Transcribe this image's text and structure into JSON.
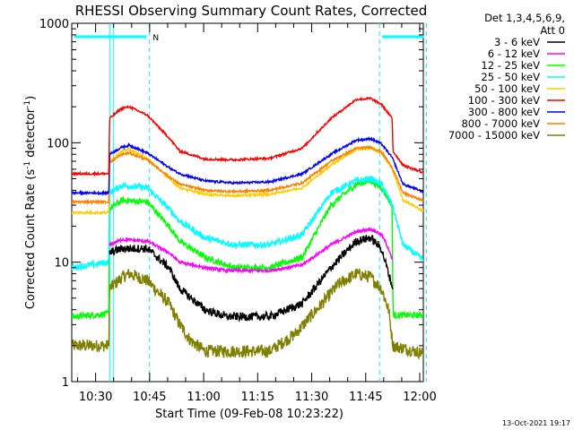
{
  "chart_data": {
    "type": "line",
    "title": "RHESSI Observing Summary Count Rates, Corrected",
    "xlabel": "Start Time (09-Feb-08 10:23:22)",
    "ylabel": "Corrected Count Rate (s-1 detector-1)",
    "ylabel_parts": {
      "base": "Corrected Count Rate (s",
      "sup1": "-1",
      "mid": " detector",
      "sup2": "-1",
      "end": ")"
    },
    "y_scale": "log",
    "ylim": [
      1,
      1000
    ],
    "xlim": [
      "10:23:22",
      "12:01:00"
    ],
    "y_tick_labels": [
      "1",
      "10",
      "100",
      "1000"
    ],
    "x_tick_labels": [
      "10:30",
      "10:45",
      "11:00",
      "11:15",
      "11:30",
      "11:45",
      "12:00"
    ],
    "legend_title": [
      "Det 1,3,4,5,6,9,",
      "Att 0"
    ],
    "legend_position": "right",
    "footer_date": "13-Oct-2021 19:17",
    "markers": {
      "top_bar_label": "N",
      "solid_lines_min": [
        10.53,
        11.53
      ],
      "dashed_lines_min": [
        21.5,
        85.5,
        98.5
      ],
      "top_bars": [
        [
          0,
          21.5
        ],
        [
          85.5,
          98.5
        ]
      ]
    },
    "series": [
      {
        "name": "3 - 6 keV",
        "color": "#000000",
        "noise": 0.08,
        "knots": [
          [
            10.5,
            12
          ],
          [
            14,
            13
          ],
          [
            21,
            13
          ],
          [
            27,
            9
          ],
          [
            30,
            6
          ],
          [
            37,
            4
          ],
          [
            43,
            3.5
          ],
          [
            55,
            3.5
          ],
          [
            64,
            4.5
          ],
          [
            72,
            9
          ],
          [
            79,
            15
          ],
          [
            83,
            16
          ],
          [
            86,
            13
          ],
          [
            88,
            8
          ],
          [
            89.2,
            6
          ]
        ]
      },
      {
        "name": "6 - 12 keV",
        "color": "#ff00ff",
        "noise": 0.03,
        "knots": [
          [
            10.5,
            14
          ],
          [
            14,
            15.5
          ],
          [
            21,
            15
          ],
          [
            27,
            12
          ],
          [
            30,
            10
          ],
          [
            37,
            9
          ],
          [
            43,
            8.5
          ],
          [
            55,
            8.5
          ],
          [
            64,
            9.5
          ],
          [
            72,
            14
          ],
          [
            79,
            18
          ],
          [
            83,
            19
          ],
          [
            86,
            17
          ],
          [
            88,
            13
          ],
          [
            89.2,
            10
          ]
        ]
      },
      {
        "name": "12 - 25 keV",
        "color": "#00ff00",
        "noise": 0.06,
        "knots": [
          [
            0,
            3.5
          ],
          [
            10.3,
            3.7
          ],
          [
            10.5,
            28
          ],
          [
            14,
            33
          ],
          [
            21,
            32
          ],
          [
            27,
            20
          ],
          [
            30,
            15
          ],
          [
            37,
            11
          ],
          [
            45,
            9
          ],
          [
            55,
            9
          ],
          [
            64,
            11
          ],
          [
            72,
            30
          ],
          [
            79,
            45
          ],
          [
            83,
            48
          ],
          [
            86,
            42
          ],
          [
            89,
            30
          ],
          [
            89.2,
            3.6
          ],
          [
            98.5,
            3.6
          ]
        ]
      },
      {
        "name": "25 - 50 keV",
        "color": "#00ffff",
        "noise": 0.06,
        "knots": [
          [
            0,
            9
          ],
          [
            10.3,
            10
          ],
          [
            10.5,
            38
          ],
          [
            14,
            44
          ],
          [
            21,
            42
          ],
          [
            27,
            28
          ],
          [
            30,
            22
          ],
          [
            37,
            16
          ],
          [
            45,
            14
          ],
          [
            55,
            14
          ],
          [
            64,
            17
          ],
          [
            72,
            38
          ],
          [
            79,
            48
          ],
          [
            83,
            50
          ],
          [
            86,
            45
          ],
          [
            89,
            30
          ],
          [
            92,
            14
          ],
          [
            98.5,
            10
          ]
        ]
      },
      {
        "name": "50 - 100 keV",
        "color": "#ffcc00",
        "noise": 0.02,
        "knots": [
          [
            0,
            26
          ],
          [
            10.3,
            26
          ],
          [
            10.5,
            70
          ],
          [
            14,
            85
          ],
          [
            16,
            88
          ],
          [
            21,
            74
          ],
          [
            27,
            50
          ],
          [
            30,
            42
          ],
          [
            37,
            37
          ],
          [
            45,
            36
          ],
          [
            55,
            37
          ],
          [
            64,
            42
          ],
          [
            72,
            65
          ],
          [
            79,
            88
          ],
          [
            83,
            90
          ],
          [
            86,
            82
          ],
          [
            89,
            60
          ],
          [
            92,
            33
          ],
          [
            98.5,
            26
          ]
        ]
      },
      {
        "name": "100 - 300 keV",
        "color": "#ff0000",
        "noise": 0.02,
        "knots": [
          [
            0,
            55
          ],
          [
            10.3,
            55
          ],
          [
            10.5,
            160
          ],
          [
            14,
            195
          ],
          [
            16,
            200
          ],
          [
            21,
            170
          ],
          [
            27,
            110
          ],
          [
            30,
            85
          ],
          [
            37,
            73
          ],
          [
            45,
            72
          ],
          [
            55,
            74
          ],
          [
            64,
            90
          ],
          [
            72,
            160
          ],
          [
            79,
            230
          ],
          [
            83,
            235
          ],
          [
            86,
            210
          ],
          [
            89,
            160
          ],
          [
            89.2,
            85
          ],
          [
            92,
            65
          ],
          [
            98.5,
            55
          ]
        ]
      },
      {
        "name": "300 - 800 keV",
        "color": "#0000ff",
        "noise": 0.02,
        "knots": [
          [
            0,
            38
          ],
          [
            10.3,
            38
          ],
          [
            10.5,
            80
          ],
          [
            14,
            92
          ],
          [
            16,
            95
          ],
          [
            21,
            82
          ],
          [
            27,
            62
          ],
          [
            30,
            55
          ],
          [
            37,
            48
          ],
          [
            45,
            46
          ],
          [
            55,
            47
          ],
          [
            64,
            55
          ],
          [
            72,
            80
          ],
          [
            79,
            105
          ],
          [
            83,
            108
          ],
          [
            86,
            98
          ],
          [
            89,
            75
          ],
          [
            92,
            45
          ],
          [
            98.5,
            38
          ]
        ]
      },
      {
        "name": "800 - 7000 keV",
        "color": "#ff8000",
        "noise": 0.02,
        "knots": [
          [
            0,
            32
          ],
          [
            10.3,
            32
          ],
          [
            10.5,
            68
          ],
          [
            14,
            80
          ],
          [
            16,
            82
          ],
          [
            21,
            72
          ],
          [
            27,
            52
          ],
          [
            30,
            45
          ],
          [
            37,
            40
          ],
          [
            45,
            39
          ],
          [
            55,
            40
          ],
          [
            64,
            46
          ],
          [
            72,
            70
          ],
          [
            79,
            90
          ],
          [
            83,
            92
          ],
          [
            86,
            84
          ],
          [
            89,
            62
          ],
          [
            92,
            38
          ],
          [
            98.5,
            32
          ]
        ]
      },
      {
        "name": "7000 - 15000 keV",
        "color": "#808000",
        "noise": 0.12,
        "knots": [
          [
            0,
            2
          ],
          [
            10.3,
            2
          ],
          [
            10.5,
            6
          ],
          [
            14,
            7.5
          ],
          [
            16,
            8
          ],
          [
            21,
            7
          ],
          [
            27,
            4.5
          ],
          [
            30,
            3
          ],
          [
            33,
            2.2
          ],
          [
            37,
            1.8
          ],
          [
            55,
            1.8
          ],
          [
            62,
            2.5
          ],
          [
            68,
            4
          ],
          [
            74,
            6.5
          ],
          [
            79,
            8
          ],
          [
            83,
            7.5
          ],
          [
            86,
            6
          ],
          [
            88,
            4
          ],
          [
            89.2,
            2
          ],
          [
            98.5,
            1.7
          ]
        ]
      }
    ]
  }
}
